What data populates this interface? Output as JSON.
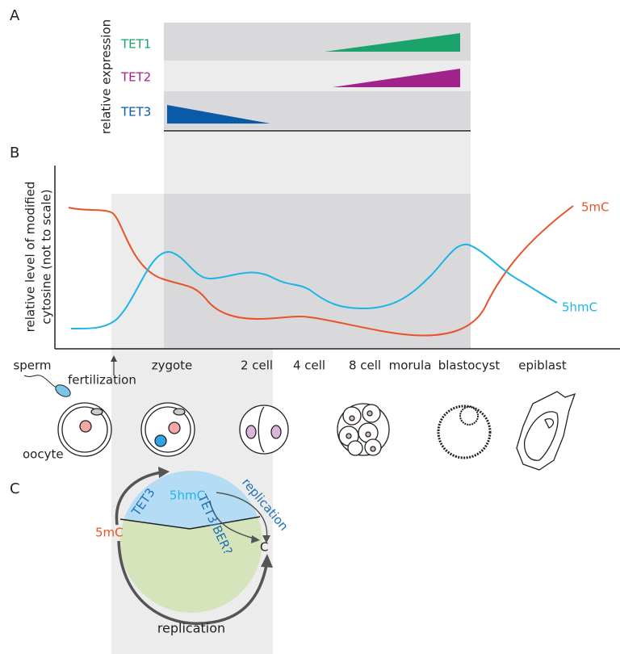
{
  "panel_a": {
    "label": "A",
    "axis_label": "relative expression",
    "rows": [
      "TET1",
      "TET2",
      "TET3"
    ]
  },
  "panel_b": {
    "label": "B",
    "axis_label": [
      "relative level of modified",
      "cytosine (not to scale)"
    ],
    "curves": [
      "5mC",
      "5hmC"
    ],
    "stages": [
      "sperm",
      "fertilization",
      "zygote",
      "2 cell",
      "4 cell",
      "8 cell",
      "morula",
      "blastocyst",
      "epiblast"
    ],
    "oocyte": "oocyte"
  },
  "panel_c": {
    "label": "C",
    "nodes": [
      "5hmC",
      "5mC",
      "C"
    ],
    "edges": [
      "TET3",
      "TET3/BER?",
      "replication",
      "replication"
    ]
  }
}
